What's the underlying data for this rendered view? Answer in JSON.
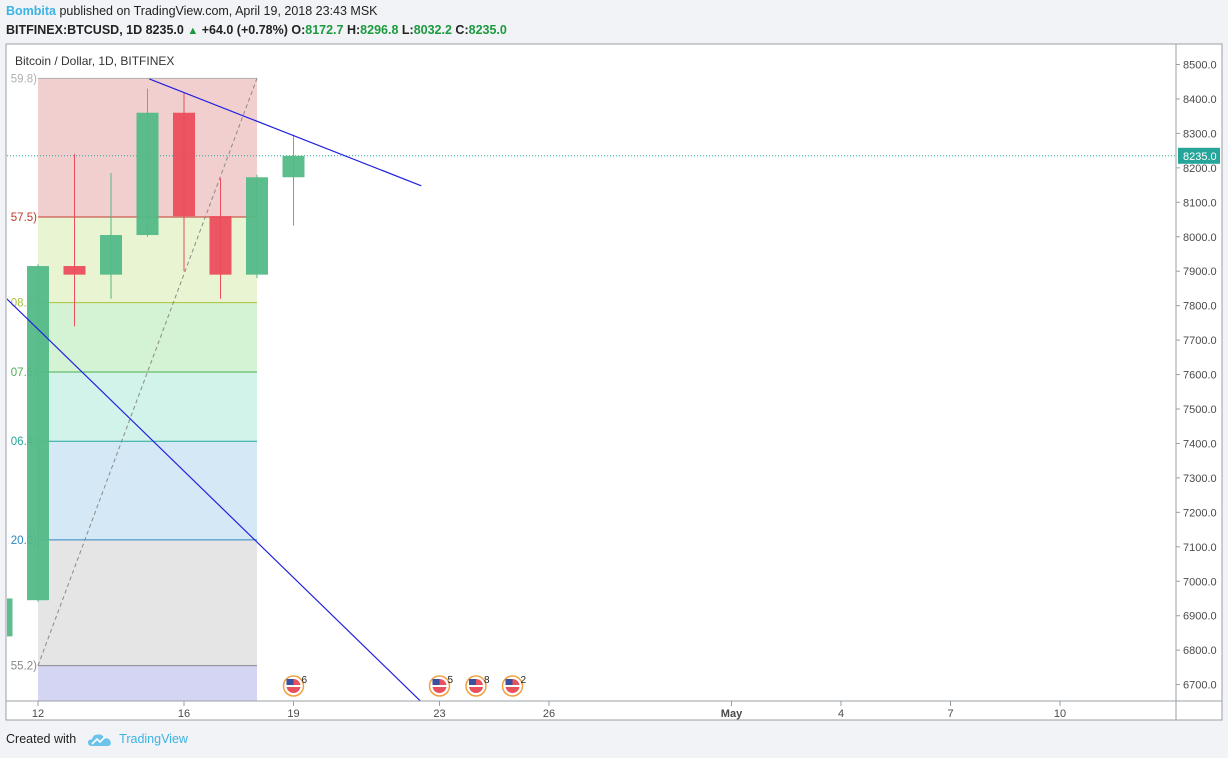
{
  "header": {
    "author": "Bombita",
    "published_text": "published on TradingView.com, April 19, 2018 23:43 MSK",
    "symbol": "BITFINEX:BTCUSD, 1D",
    "last": "8235.0",
    "change": "+64.0 (+0.78%)",
    "o_label": "O:",
    "o_val": "8172.7",
    "h_label": "H:",
    "h_val": "8296.8",
    "l_label": "L:",
    "l_val": "8032.2",
    "c_label": "C:",
    "c_val": "8235.0"
  },
  "footer": {
    "created_with": "Created with",
    "brand": "TradingView"
  },
  "colors": {
    "up": "#53b987",
    "down": "#eb4d5c",
    "trendline": "#2020e0",
    "price_line": "#26a69a"
  },
  "chart_data": {
    "type": "candlestick",
    "legend": "Bitcoin / Dollar, 1D, BITFINEX",
    "ylim": [
      6650,
      8560
    ],
    "y_ticks": [
      "8500.0",
      "8400.0",
      "8300.0",
      "8200.0",
      "8100.0",
      "8000.0",
      "7900.0",
      "7800.0",
      "7700.0",
      "7600.0",
      "7500.0",
      "7400.0",
      "7300.0",
      "7200.0",
      "7100.0",
      "7000.0",
      "6900.0",
      "6800.0",
      "6700.0"
    ],
    "x_ticks": [
      {
        "day": 12,
        "label": "12"
      },
      {
        "day": 16,
        "label": "16"
      },
      {
        "day": 19,
        "label": "19"
      },
      {
        "day": 23,
        "label": "23"
      },
      {
        "day": 26,
        "label": "26"
      },
      {
        "day": 31,
        "label": "May"
      },
      {
        "day": 34,
        "label": "4"
      },
      {
        "day": 37,
        "label": "7"
      },
      {
        "day": 40,
        "label": "10"
      }
    ],
    "current_price": "8235.0",
    "candles": [
      {
        "day": 11,
        "open": 6840,
        "high": 6950,
        "low": 6840,
        "close": 6950
      },
      {
        "day": 12,
        "open": 6945,
        "high": 7920,
        "low": 6940,
        "close": 7915
      },
      {
        "day": 13,
        "open": 7915,
        "high": 8240,
        "low": 7740,
        "close": 7890
      },
      {
        "day": 14,
        "open": 7890,
        "high": 8185,
        "low": 7820,
        "close": 8005
      },
      {
        "day": 15,
        "open": 8005,
        "high": 8430,
        "low": 8000,
        "close": 8360
      },
      {
        "day": 16,
        "open": 8360,
        "high": 8420,
        "low": 7900,
        "close": 8060
      },
      {
        "day": 17,
        "open": 8060,
        "high": 8170,
        "low": 7820,
        "close": 7890
      },
      {
        "day": 18,
        "open": 7890,
        "high": 8180,
        "low": 7880,
        "close": 8172.7
      },
      {
        "day": 19,
        "open": 8172.7,
        "high": 8296.8,
        "low": 8032.2,
        "close": 8235
      }
    ],
    "fib_levels": [
      {
        "value": 8459.8,
        "label": "59.8)"
      },
      {
        "value": 8057.5,
        "label": "57.5)"
      },
      {
        "value": 7808.7,
        "label": "08.7)"
      },
      {
        "value": 7607.5,
        "label": "07.5)"
      },
      {
        "value": 7406.4,
        "label": "06.4)"
      },
      {
        "value": 7120.0,
        "label": "20.0)"
      },
      {
        "value": 6755.2,
        "label": "55.2)"
      }
    ],
    "fib_colors": [
      "#f2cfcf",
      "#e8f4d2",
      "#d4f2d4",
      "#d2f3ea",
      "#d4e9f5",
      "#e5e5e5",
      "#d4d4f3"
    ],
    "fib_line_colors": [
      "#b0b0b0",
      "#c0392b",
      "#a8c23a",
      "#4caf50",
      "#26a69a",
      "#2e86c1",
      "#888888"
    ],
    "events": [
      {
        "day": 19,
        "count": "6"
      },
      {
        "day": 23,
        "count": "5"
      },
      {
        "day": 24,
        "count": "8"
      },
      {
        "day": 25,
        "count": "2"
      }
    ]
  }
}
